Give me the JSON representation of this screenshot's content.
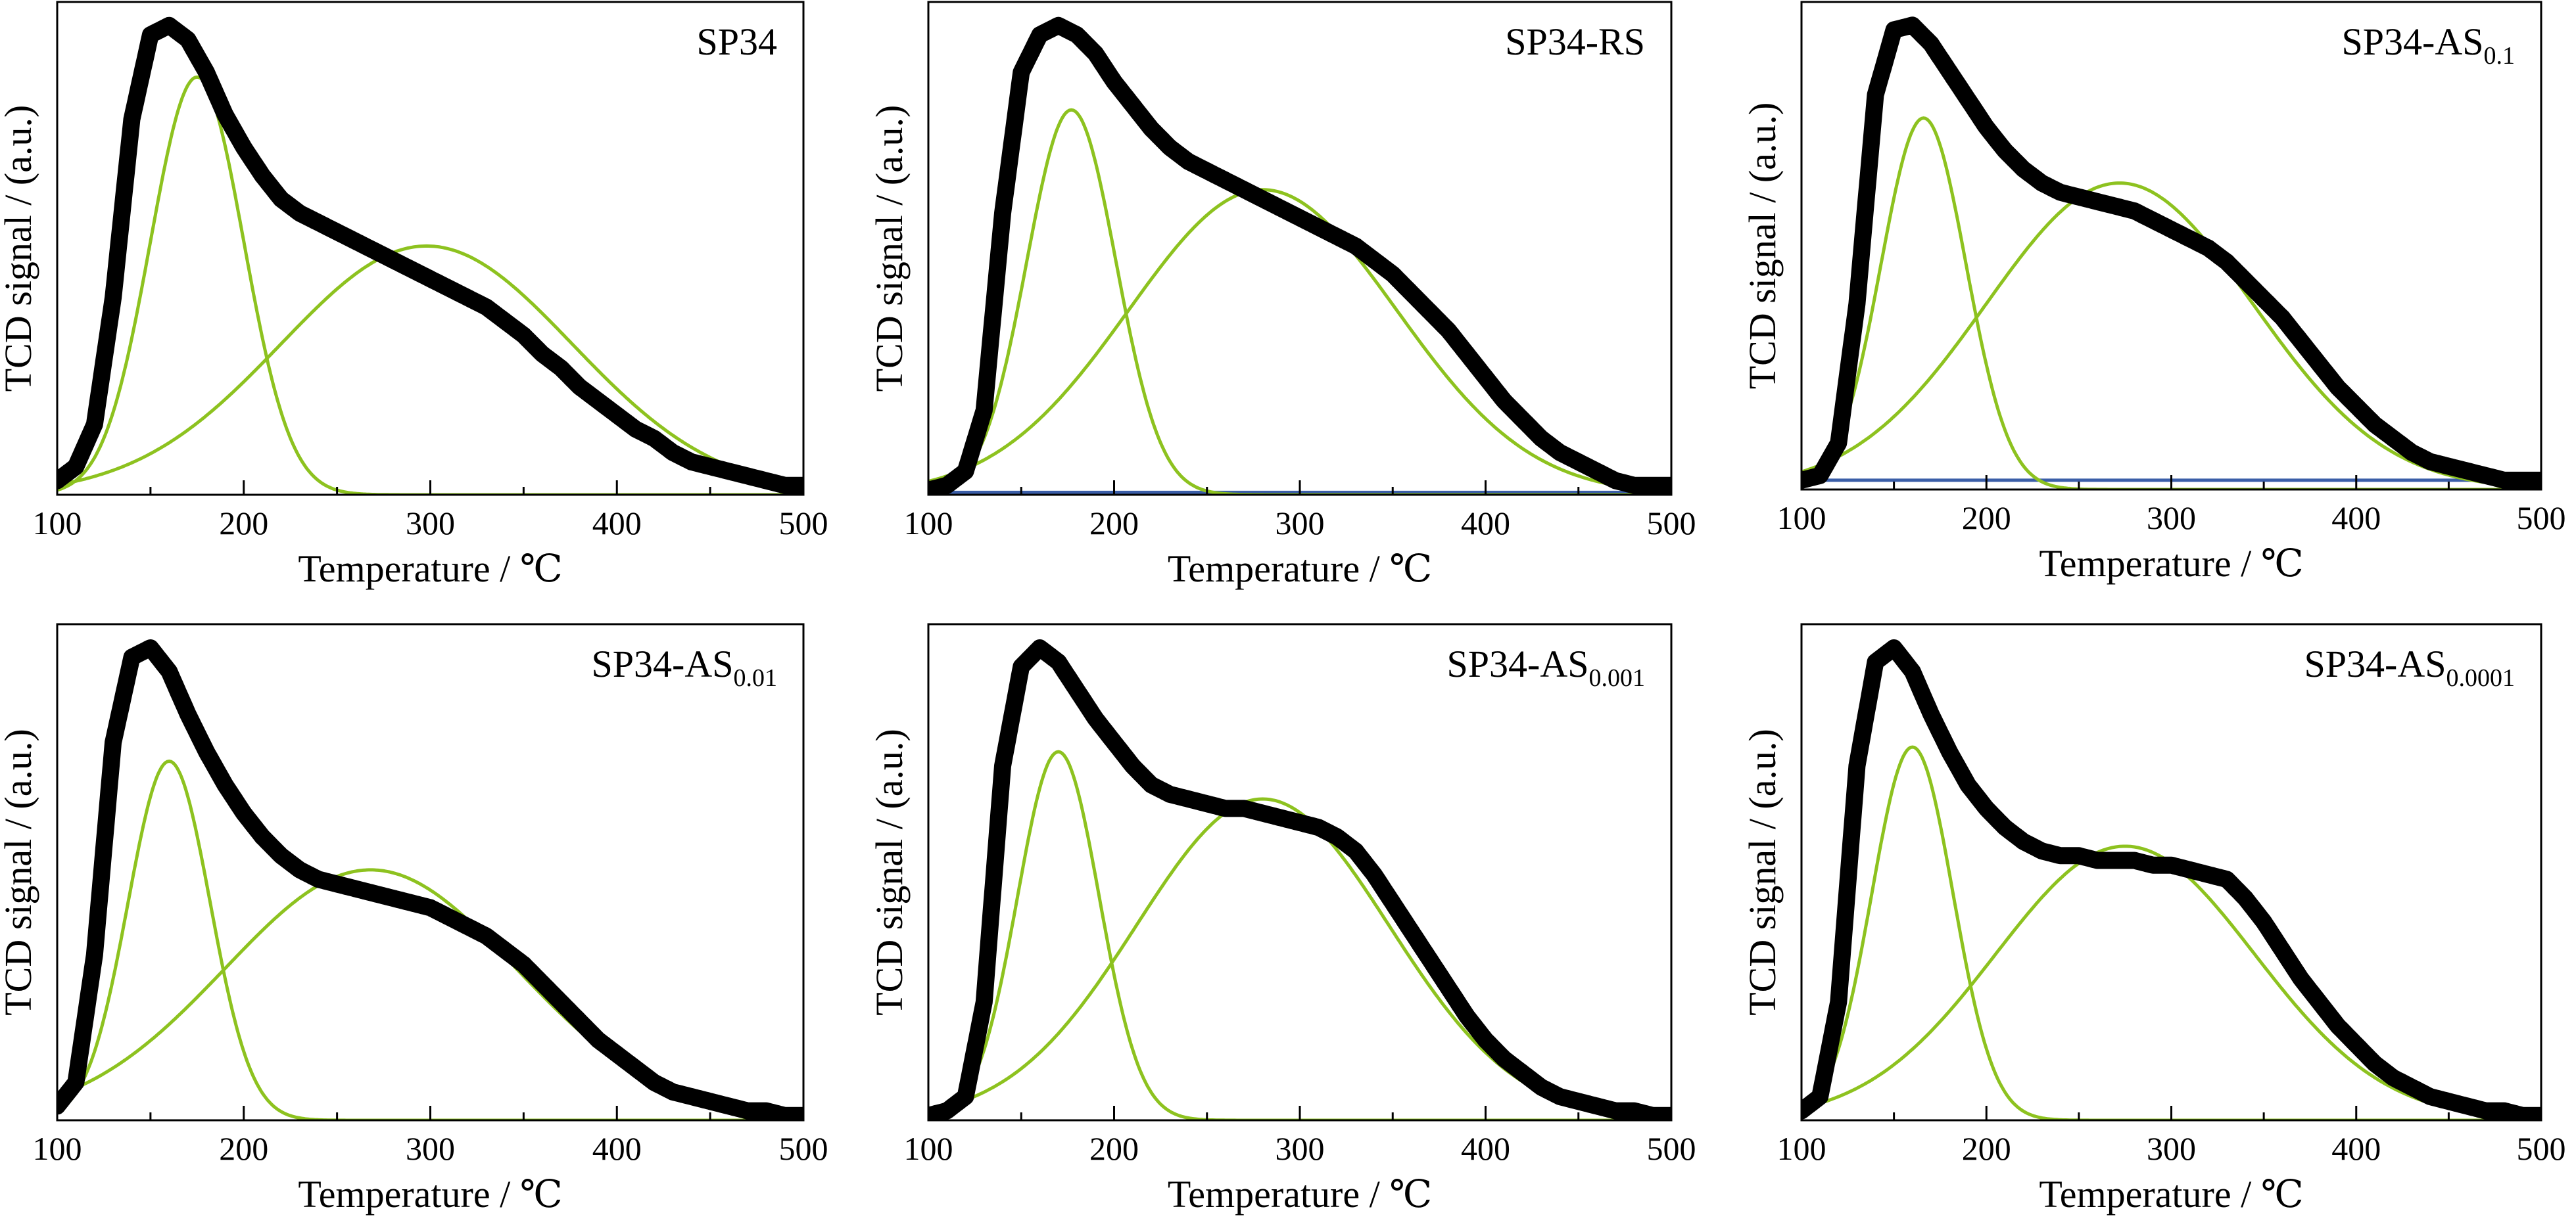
{
  "figure": {
    "panels": 6
  },
  "chart_data": [
    {
      "type": "line",
      "title": "SP34",
      "title_sub": "",
      "xlabel": "Temperature / ℃",
      "ylabel": "TCD signal / (a.u.)",
      "xlim": [
        100,
        500
      ],
      "ylim": [
        0,
        1.05
      ],
      "xticks": [
        100,
        200,
        300,
        400,
        500
      ],
      "grid": false,
      "colors": {
        "measured": "#000000",
        "fit": "#8dc21f",
        "baseline": "#3b5ea8"
      },
      "baseline_y": null,
      "peak1": {
        "center": 175,
        "height": 0.89,
        "width": 25
      },
      "peak2": {
        "center": 298,
        "height": 0.53,
        "width": 78
      },
      "measured": {
        "x": [
          100,
          110,
          120,
          130,
          140,
          150,
          160,
          170,
          180,
          190,
          200,
          210,
          220,
          230,
          240,
          250,
          260,
          270,
          280,
          290,
          300,
          310,
          320,
          330,
          340,
          350,
          360,
          370,
          380,
          390,
          400,
          410,
          420,
          430,
          440,
          450,
          460,
          470,
          480,
          490,
          500
        ],
        "y": [
          0.03,
          0.06,
          0.15,
          0.42,
          0.8,
          0.98,
          1.0,
          0.97,
          0.9,
          0.81,
          0.74,
          0.68,
          0.63,
          0.6,
          0.58,
          0.56,
          0.54,
          0.52,
          0.5,
          0.48,
          0.46,
          0.44,
          0.42,
          0.4,
          0.37,
          0.34,
          0.3,
          0.27,
          0.23,
          0.2,
          0.17,
          0.14,
          0.12,
          0.09,
          0.07,
          0.06,
          0.05,
          0.04,
          0.03,
          0.02,
          0.02
        ]
      }
    },
    {
      "type": "line",
      "title": "SP34-RS",
      "title_sub": "",
      "xlabel": "Temperature / ℃",
      "ylabel": "TCD signal / (a.u.)",
      "xlim": [
        100,
        500
      ],
      "ylim": [
        0,
        1.05
      ],
      "xticks": [
        100,
        200,
        300,
        400,
        500
      ],
      "grid": false,
      "colors": {
        "measured": "#000000",
        "fit": "#8dc21f",
        "baseline": "#3b5ea8"
      },
      "baseline_y": 0.005,
      "peak1": {
        "center": 177,
        "height": 0.82,
        "width": 24
      },
      "peak2": {
        "center": 280,
        "height": 0.65,
        "width": 72
      },
      "measured": {
        "x": [
          100,
          110,
          120,
          130,
          140,
          150,
          160,
          170,
          180,
          190,
          200,
          210,
          220,
          230,
          240,
          250,
          260,
          270,
          280,
          290,
          300,
          310,
          320,
          330,
          340,
          350,
          360,
          370,
          380,
          390,
          400,
          410,
          420,
          430,
          440,
          450,
          460,
          470,
          480,
          490,
          500
        ],
        "y": [
          0.01,
          0.02,
          0.05,
          0.18,
          0.6,
          0.9,
          0.98,
          1.0,
          0.98,
          0.94,
          0.88,
          0.83,
          0.78,
          0.74,
          0.71,
          0.69,
          0.67,
          0.65,
          0.63,
          0.61,
          0.59,
          0.57,
          0.55,
          0.53,
          0.5,
          0.47,
          0.43,
          0.39,
          0.35,
          0.3,
          0.25,
          0.2,
          0.16,
          0.12,
          0.09,
          0.07,
          0.05,
          0.03,
          0.02,
          0.02,
          0.02
        ]
      }
    },
    {
      "type": "line",
      "title": "SP34-AS",
      "title_sub": "0.1",
      "xlabel": "Temperature / ℃",
      "ylabel": "TCD signal / (a.u.)",
      "xlim": [
        100,
        500
      ],
      "ylim": [
        0,
        1.05
      ],
      "xticks": [
        100,
        200,
        300,
        400,
        500
      ],
      "grid": false,
      "colors": {
        "measured": "#000000",
        "fit": "#8dc21f",
        "baseline": "#3b5ea8"
      },
      "baseline_y": 0.02,
      "peak1": {
        "center": 166,
        "height": 0.8,
        "width": 23
      },
      "peak2": {
        "center": 272,
        "height": 0.66,
        "width": 72
      },
      "measured": {
        "x": [
          100,
          110,
          120,
          130,
          140,
          150,
          160,
          170,
          180,
          190,
          200,
          210,
          220,
          230,
          240,
          250,
          260,
          270,
          280,
          290,
          300,
          310,
          320,
          330,
          340,
          350,
          360,
          370,
          380,
          390,
          400,
          410,
          420,
          430,
          440,
          450,
          460,
          470,
          480,
          490,
          500
        ],
        "y": [
          0.02,
          0.03,
          0.1,
          0.4,
          0.85,
          0.99,
          1.0,
          0.96,
          0.9,
          0.84,
          0.78,
          0.73,
          0.69,
          0.66,
          0.64,
          0.63,
          0.62,
          0.61,
          0.6,
          0.58,
          0.56,
          0.54,
          0.52,
          0.49,
          0.45,
          0.41,
          0.37,
          0.32,
          0.27,
          0.22,
          0.18,
          0.14,
          0.11,
          0.08,
          0.06,
          0.05,
          0.04,
          0.03,
          0.02,
          0.02,
          0.02
        ]
      }
    },
    {
      "type": "line",
      "title": "SP34-AS",
      "title_sub": "0.01",
      "xlabel": "Temperature / ℃",
      "ylabel": "TCD signal / (a.u.)",
      "xlim": [
        100,
        500
      ],
      "ylim": [
        0,
        1.05
      ],
      "xticks": [
        100,
        200,
        300,
        400,
        500
      ],
      "grid": false,
      "colors": {
        "measured": "#000000",
        "fit": "#8dc21f",
        "baseline": "#3b5ea8"
      },
      "baseline_y": null,
      "peak1": {
        "center": 160,
        "height": 0.76,
        "width": 22
      },
      "peak2": {
        "center": 268,
        "height": 0.53,
        "width": 78
      },
      "measured": {
        "x": [
          100,
          110,
          120,
          130,
          140,
          150,
          160,
          170,
          180,
          190,
          200,
          210,
          220,
          230,
          240,
          250,
          260,
          270,
          280,
          290,
          300,
          310,
          320,
          330,
          340,
          350,
          360,
          370,
          380,
          390,
          400,
          410,
          420,
          430,
          440,
          450,
          460,
          470,
          480,
          490,
          500
        ],
        "y": [
          0.03,
          0.08,
          0.35,
          0.8,
          0.98,
          1.0,
          0.95,
          0.86,
          0.78,
          0.71,
          0.65,
          0.6,
          0.56,
          0.53,
          0.51,
          0.5,
          0.49,
          0.48,
          0.47,
          0.46,
          0.45,
          0.43,
          0.41,
          0.39,
          0.36,
          0.33,
          0.29,
          0.25,
          0.21,
          0.17,
          0.14,
          0.11,
          0.08,
          0.06,
          0.05,
          0.04,
          0.03,
          0.02,
          0.02,
          0.01,
          0.01
        ]
      }
    },
    {
      "type": "line",
      "title": "SP34-AS",
      "title_sub": "0.001",
      "xlabel": "Temperature / ℃",
      "ylabel": "TCD signal / (a.u.)",
      "xlim": [
        100,
        500
      ],
      "ylim": [
        0,
        1.05
      ],
      "xticks": [
        100,
        200,
        300,
        400,
        500
      ],
      "grid": false,
      "colors": {
        "measured": "#000000",
        "fit": "#8dc21f",
        "baseline": "#3b5ea8"
      },
      "baseline_y": null,
      "peak1": {
        "center": 170,
        "height": 0.78,
        "width": 22
      },
      "peak2": {
        "center": 280,
        "height": 0.68,
        "width": 68
      },
      "measured": {
        "x": [
          100,
          110,
          120,
          130,
          140,
          150,
          160,
          170,
          180,
          190,
          200,
          210,
          220,
          230,
          240,
          250,
          260,
          270,
          280,
          290,
          300,
          310,
          320,
          330,
          340,
          350,
          360,
          370,
          380,
          390,
          400,
          410,
          420,
          430,
          440,
          450,
          460,
          470,
          480,
          490,
          500
        ],
        "y": [
          0.01,
          0.02,
          0.05,
          0.25,
          0.75,
          0.96,
          1.0,
          0.97,
          0.91,
          0.85,
          0.8,
          0.75,
          0.71,
          0.69,
          0.68,
          0.67,
          0.66,
          0.66,
          0.65,
          0.64,
          0.63,
          0.62,
          0.6,
          0.57,
          0.52,
          0.46,
          0.4,
          0.34,
          0.28,
          0.22,
          0.17,
          0.13,
          0.1,
          0.07,
          0.05,
          0.04,
          0.03,
          0.02,
          0.02,
          0.01,
          0.01
        ]
      }
    },
    {
      "type": "line",
      "title": "SP34-AS",
      "title_sub": "0.0001",
      "xlabel": "Temperature / ℃",
      "ylabel": "TCD signal / (a.u.)",
      "xlim": [
        100,
        500
      ],
      "ylim": [
        0,
        1.05
      ],
      "xticks": [
        100,
        200,
        300,
        400,
        500
      ],
      "grid": false,
      "colors": {
        "measured": "#000000",
        "fit": "#8dc21f",
        "baseline": "#3b5ea8"
      },
      "baseline_y": null,
      "peak1": {
        "center": 160,
        "height": 0.79,
        "width": 22
      },
      "peak2": {
        "center": 275,
        "height": 0.58,
        "width": 70
      },
      "measured": {
        "x": [
          100,
          110,
          120,
          130,
          140,
          150,
          160,
          170,
          180,
          190,
          200,
          210,
          220,
          230,
          240,
          250,
          260,
          270,
          280,
          290,
          300,
          310,
          320,
          330,
          340,
          350,
          360,
          370,
          380,
          390,
          400,
          410,
          420,
          430,
          440,
          450,
          460,
          470,
          480,
          490,
          500
        ],
        "y": [
          0.02,
          0.05,
          0.25,
          0.75,
          0.97,
          1.0,
          0.95,
          0.86,
          0.78,
          0.71,
          0.66,
          0.62,
          0.59,
          0.57,
          0.56,
          0.56,
          0.55,
          0.55,
          0.55,
          0.54,
          0.54,
          0.53,
          0.52,
          0.51,
          0.47,
          0.42,
          0.36,
          0.3,
          0.25,
          0.2,
          0.16,
          0.12,
          0.09,
          0.07,
          0.05,
          0.04,
          0.03,
          0.02,
          0.02,
          0.01,
          0.01
        ]
      }
    }
  ]
}
